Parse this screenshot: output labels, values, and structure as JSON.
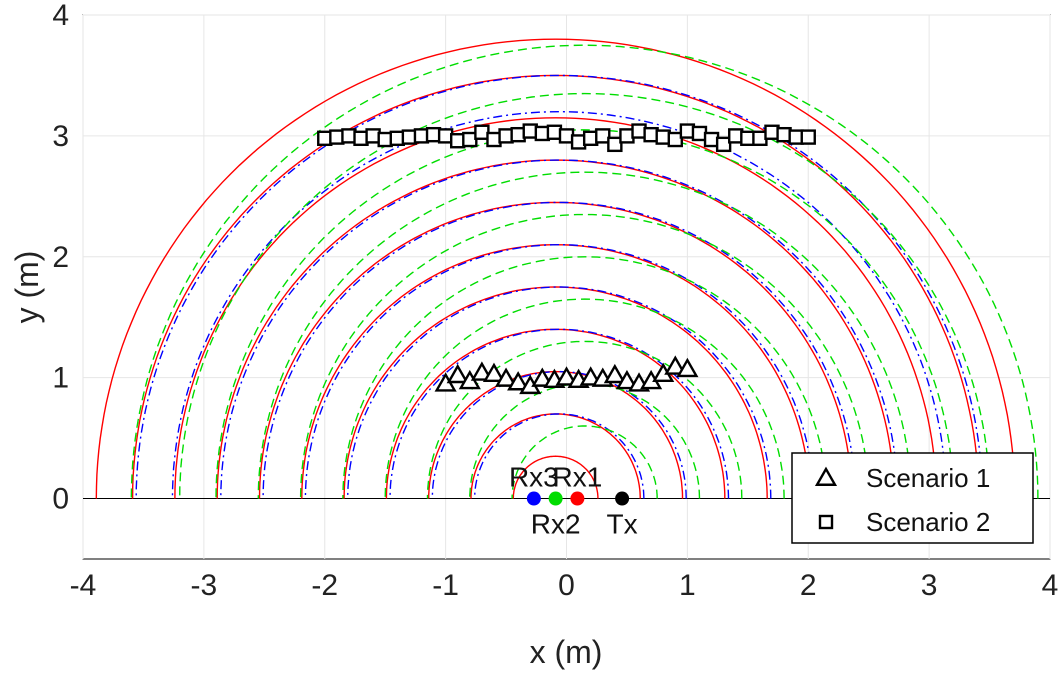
{
  "chart_data": {
    "type": "scatter",
    "title": "",
    "xlabel": "x (m)",
    "ylabel": "y (m)",
    "xlim": [
      -4,
      4
    ],
    "ylim": [
      -0.5,
      4
    ],
    "xticks": [
      -4,
      -3,
      -2,
      -1,
      0,
      1,
      2,
      3,
      4
    ],
    "yticks": [
      0,
      1,
      2,
      3,
      4
    ],
    "grid": true,
    "legend_position": "bottom-right",
    "points": [
      {
        "label": "Rx3",
        "x": -0.27,
        "y": 0,
        "color": "#0000ff",
        "label_pos": "above"
      },
      {
        "label": "Rx2",
        "x": -0.09,
        "y": 0,
        "color": "#00dd00",
        "label_pos": "below"
      },
      {
        "label": "Rx1",
        "x": 0.09,
        "y": 0,
        "color": "#ff0000",
        "label_pos": "above"
      },
      {
        "label": "Tx",
        "x": 0.46,
        "y": 0,
        "color": "#000000",
        "label_pos": "below"
      }
    ],
    "arc_families": [
      {
        "center": -0.09,
        "color": "#ff0000",
        "dash": "solid",
        "radii": [
          0.35,
          0.7,
          1.05,
          1.4,
          1.75,
          2.1,
          2.45,
          2.8,
          3.15,
          3.5,
          3.8
        ]
      },
      {
        "center": -0.06,
        "color": "#0000ff",
        "dash": "dashdot",
        "radii": [
          0.7,
          1.05,
          1.4,
          1.75,
          2.1,
          2.45,
          2.8,
          3.2,
          3.5
        ]
      },
      {
        "center": 0.15,
        "color": "#00dd00",
        "dash": "dashed",
        "radii": [
          0.6,
          0.95,
          1.3,
          1.65,
          2.0,
          2.35,
          2.7,
          3.05,
          3.35,
          3.75
        ]
      }
    ],
    "series": [
      {
        "name": "Scenario 1",
        "marker": "triangle",
        "x": [
          -1.0,
          -0.9,
          -0.8,
          -0.7,
          -0.6,
          -0.5,
          -0.4,
          -0.3,
          -0.2,
          -0.1,
          0.0,
          0.1,
          0.2,
          0.3,
          0.4,
          0.5,
          0.6,
          0.7,
          0.8,
          0.9,
          1.0
        ],
        "y": [
          0.95,
          1.02,
          0.97,
          1.04,
          1.03,
          0.99,
          0.96,
          0.93,
          0.99,
          0.98,
          1.0,
          0.98,
          1.0,
          0.99,
          1.02,
          0.97,
          0.95,
          0.97,
          1.03,
          1.09,
          1.07
        ]
      },
      {
        "name": "Scenario 2",
        "marker": "square",
        "x": [
          -2.0,
          -1.9,
          -1.8,
          -1.7,
          -1.6,
          -1.5,
          -1.4,
          -1.3,
          -1.2,
          -1.1,
          -1.0,
          -0.9,
          -0.8,
          -0.7,
          -0.6,
          -0.5,
          -0.4,
          -0.3,
          -0.2,
          -0.1,
          0.0,
          0.1,
          0.2,
          0.3,
          0.4,
          0.5,
          0.6,
          0.7,
          0.8,
          0.9,
          1.0,
          1.1,
          1.2,
          1.3,
          1.4,
          1.5,
          1.6,
          1.7,
          1.8,
          1.9,
          2.0
        ],
        "y": [
          2.98,
          2.99,
          3.0,
          2.98,
          3.0,
          2.97,
          2.98,
          2.99,
          3.0,
          3.01,
          3.0,
          2.96,
          2.97,
          3.03,
          2.97,
          3.0,
          3.01,
          3.04,
          3.02,
          3.03,
          3.0,
          2.95,
          2.98,
          3.0,
          2.93,
          3.0,
          3.04,
          3.01,
          2.99,
          2.97,
          3.04,
          3.02,
          2.97,
          2.93,
          3.0,
          2.98,
          2.98,
          3.03,
          3.01,
          2.99,
          2.99
        ]
      }
    ]
  }
}
